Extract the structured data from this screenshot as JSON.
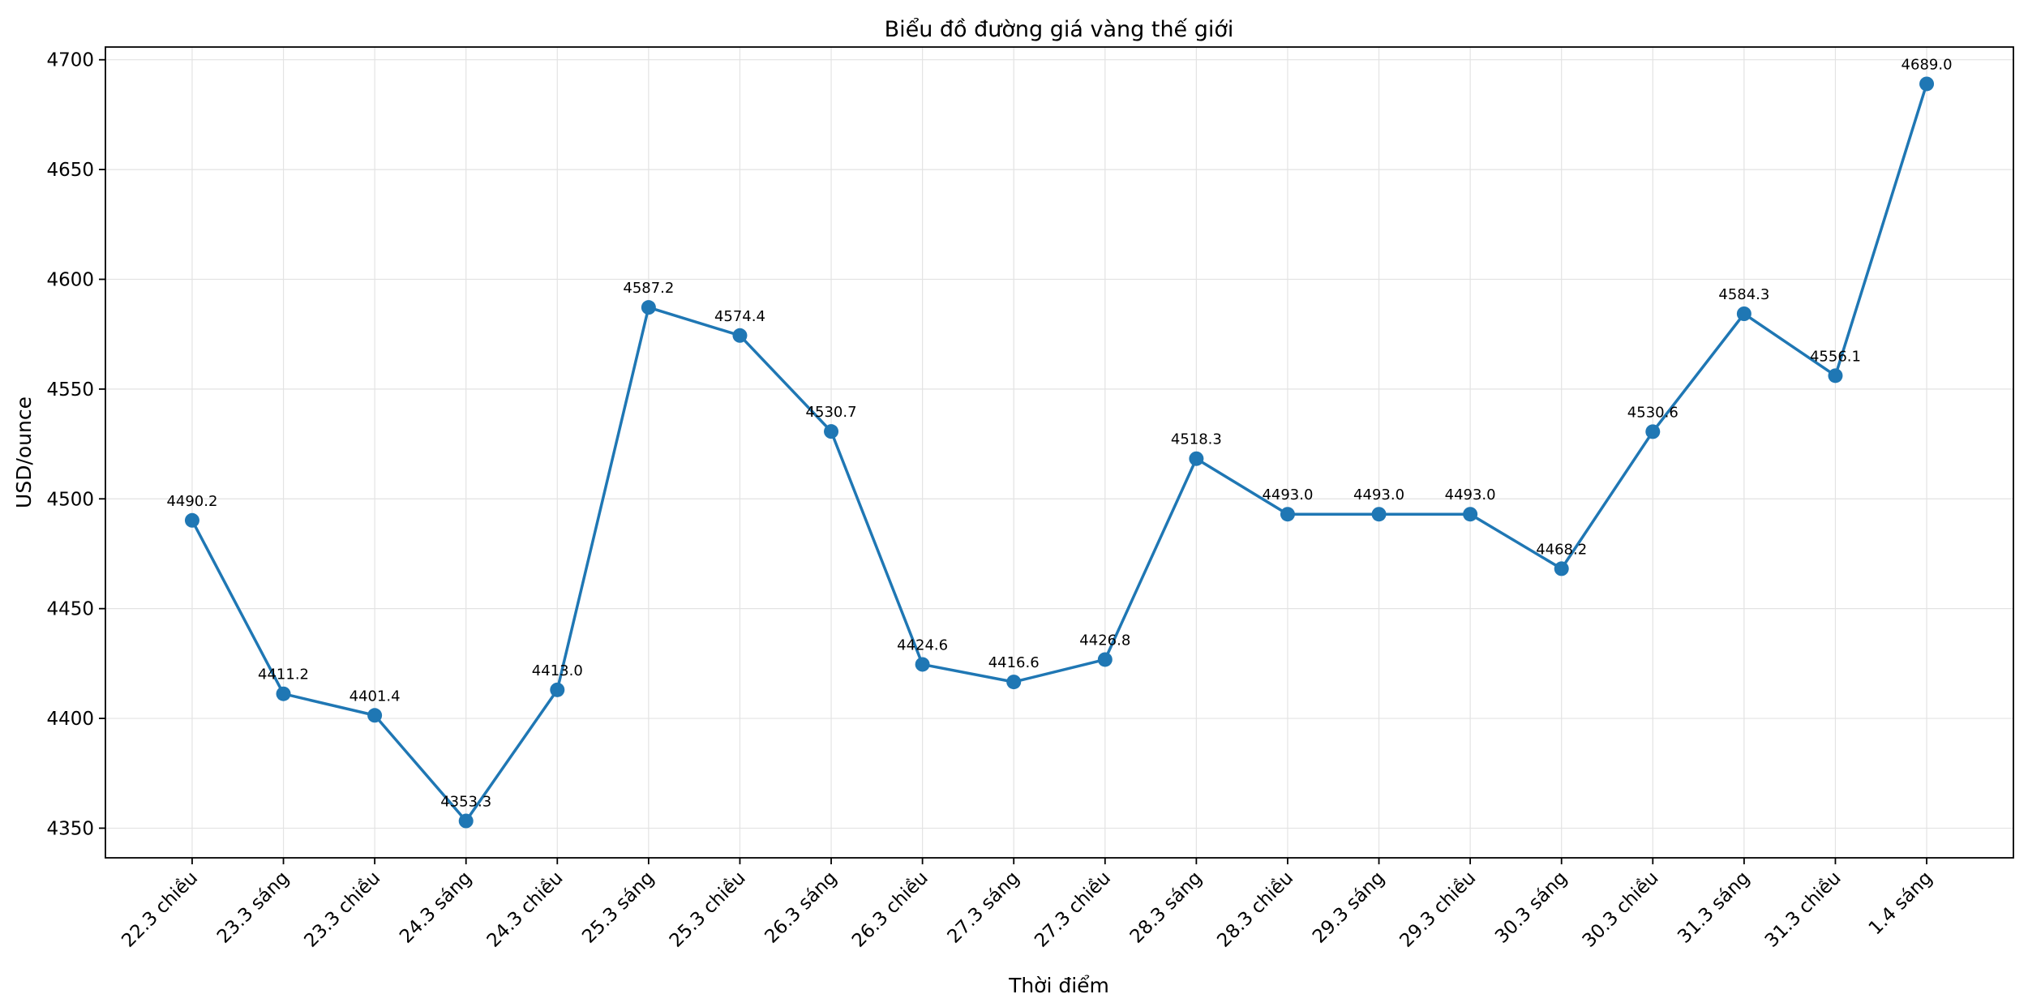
{
  "chart_data": {
    "type": "line",
    "title": "Biểu đồ đường giá vàng thế giới",
    "xlabel": "Thời điểm",
    "ylabel": "USD/ounce",
    "categories": [
      "22.3 chiều",
      "23.3 sáng",
      "23.3 chiều",
      "24.3 sáng",
      "24.3 chiều",
      "25.3 sáng",
      "25.3 chiều",
      "26.3 sáng",
      "26.3 chiều",
      "27.3 sáng",
      "27.3 chiều",
      "28.3 sáng",
      "28.3 chiều",
      "29.3 sáng",
      "29.3 chiều",
      "30.3 sáng",
      "30.3 chiều",
      "31.3 sáng",
      "31.3 chiều",
      "1.4 sáng"
    ],
    "values": [
      4490.2,
      4411.2,
      4401.4,
      4353.3,
      4413.0,
      4587.2,
      4574.4,
      4530.7,
      4424.6,
      4416.6,
      4426.8,
      4518.3,
      4493.0,
      4493.0,
      4493.0,
      4468.2,
      4530.6,
      4584.3,
      4556.1,
      4689.0
    ],
    "point_labels": [
      "4490.2",
      "4411.2",
      "4401.4",
      "4353.3",
      "4413.0",
      "4587.2",
      "4574.4",
      "4530.7",
      "4424.6",
      "4416.6",
      "4426.8",
      "4518.3",
      "4493.0",
      "4493.0",
      "4493.0",
      "4468.2",
      "4530.6",
      "4584.3",
      "4556.1",
      "4689.0"
    ],
    "yticks": [
      4350,
      4400,
      4450,
      4500,
      4550,
      4600,
      4650,
      4700
    ],
    "ylim": [
      4336.5,
      4705.8
    ],
    "xlim": [
      -0.95,
      19.95
    ],
    "grid": true,
    "legend_position": "none",
    "line_color": "#1f77b4",
    "marker": "circle",
    "grid_color": "#e3e3e3",
    "spine_color": "#000000",
    "background_color": "#ffffff"
  }
}
